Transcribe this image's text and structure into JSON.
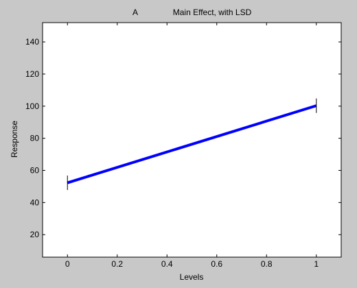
{
  "figure": {
    "background": "#c8c8c8"
  },
  "chart_data": {
    "type": "line",
    "title_prefix": "A",
    "title": "Main Effect, with LSD",
    "xlabel": "Levels",
    "ylabel": "Response",
    "xlim": [
      -0.1,
      1.1
    ],
    "ylim": [
      6,
      152
    ],
    "x_ticks": [
      0,
      0.2,
      0.4,
      0.6,
      0.8,
      1
    ],
    "x_tick_labels": [
      "0",
      "0.2",
      "0.4",
      "0.6",
      "0.8",
      "1"
    ],
    "y_ticks": [
      20,
      40,
      60,
      80,
      100,
      120,
      140
    ],
    "y_tick_labels": [
      "20",
      "40",
      "60",
      "80",
      "100",
      "120",
      "140"
    ],
    "grid": false,
    "series": [
      {
        "x": [
          0,
          1
        ],
        "y": [
          52.3,
          100.3
        ],
        "lsd_half_width": 4.5,
        "color": "#0000ff"
      }
    ]
  }
}
